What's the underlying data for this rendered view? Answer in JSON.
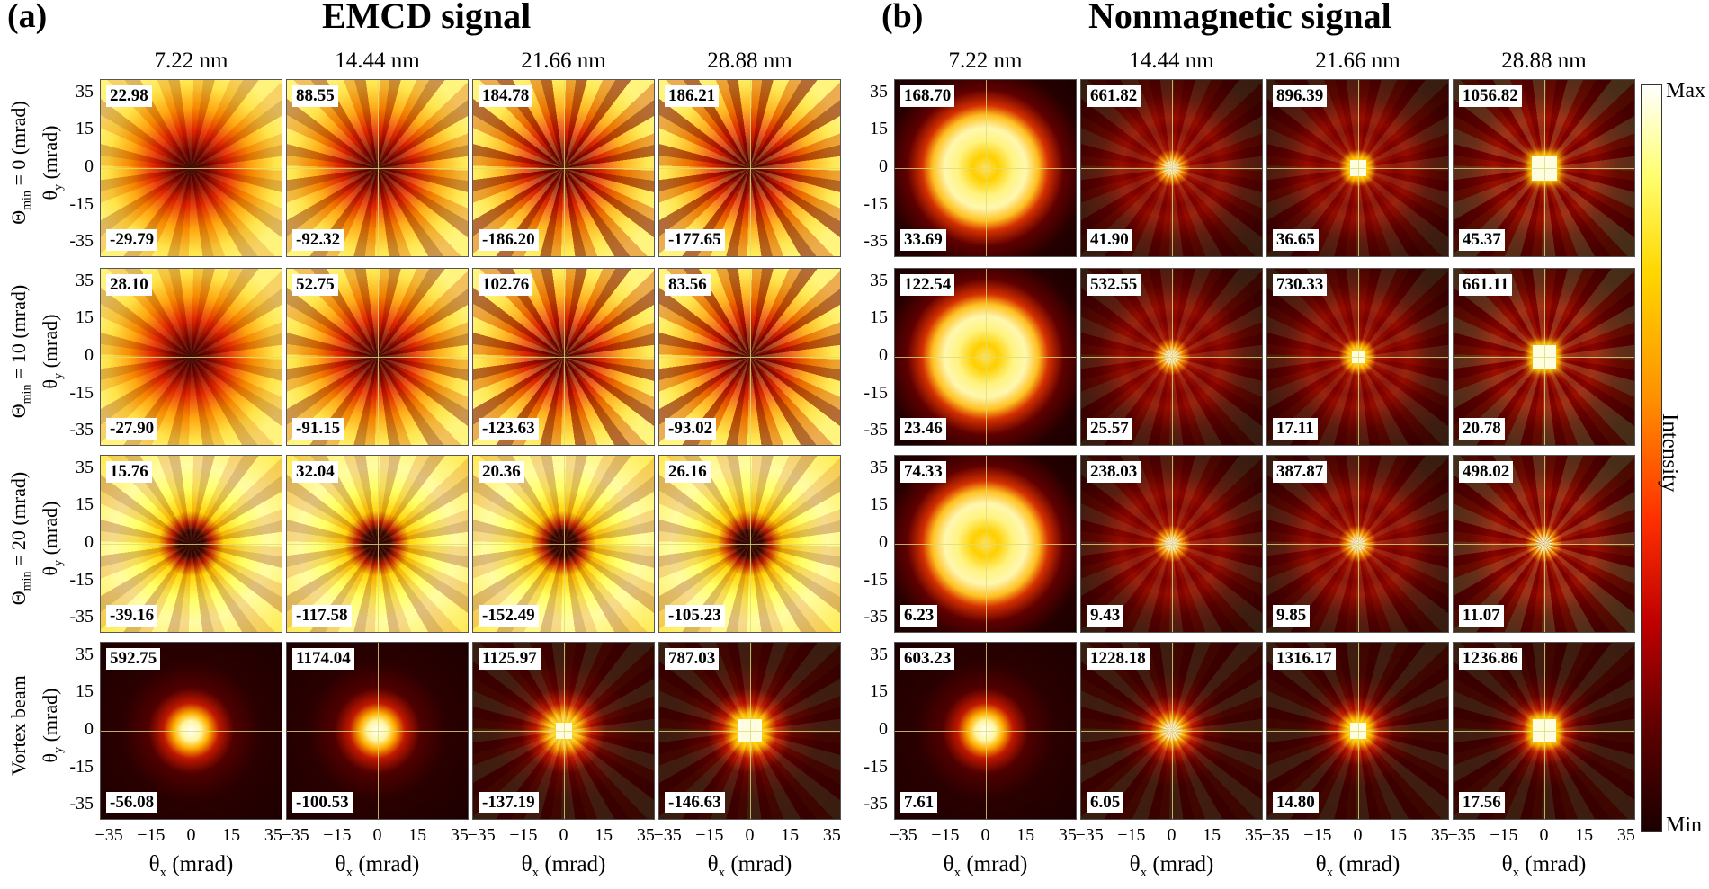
{
  "panel_a": {
    "label": "(a)",
    "title": "EMCD signal"
  },
  "panel_b": {
    "label": "(b)",
    "title": "Nonmagnetic signal"
  },
  "thicknesses": [
    "7.22 nm",
    "14.44 nm",
    "21.66 nm",
    "28.88 nm"
  ],
  "row_labels": [
    {
      "line1": "Θ",
      "sub1": "min",
      "rest1": " = 0 (mrad)",
      "line2": "θ",
      "sub2": "y",
      "rest2": " (mrad)"
    },
    {
      "line1": "Θ",
      "sub1": "min",
      "rest1": " = 10 (mrad)",
      "line2": "θ",
      "sub2": "y",
      "rest2": " (mrad)"
    },
    {
      "line1": "Θ",
      "sub1": "min",
      "rest1": " = 20 (mrad)",
      "line2": "θ",
      "sub2": "y",
      "rest2": " (mrad)"
    },
    {
      "line1": "Vortex beam",
      "sub1": "",
      "rest1": "",
      "line2": "θ",
      "sub2": "y",
      "rest2": " (mrad)"
    }
  ],
  "yticks": [
    "35",
    "15",
    "0",
    "-15",
    "-35"
  ],
  "xticks": [
    "−35",
    "−15",
    "0",
    "15",
    "35"
  ],
  "xlabel": {
    "theta": "θ",
    "sub": "x",
    "unit": " (mrad)"
  },
  "emcd_values": [
    [
      [
        "22.98",
        "-29.79"
      ],
      [
        "88.55",
        "-92.32"
      ],
      [
        "184.78",
        "-186.20"
      ],
      [
        "186.21",
        "-177.65"
      ]
    ],
    [
      [
        "28.10",
        "-27.90"
      ],
      [
        "52.75",
        "-91.15"
      ],
      [
        "102.76",
        "-123.63"
      ],
      [
        "83.56",
        "-93.02"
      ]
    ],
    [
      [
        "15.76",
        "-39.16"
      ],
      [
        "32.04",
        "-117.58"
      ],
      [
        "20.36",
        "-152.49"
      ],
      [
        "26.16",
        "-105.23"
      ]
    ],
    [
      [
        "592.75",
        "-56.08"
      ],
      [
        "1174.04",
        "-100.53"
      ],
      [
        "1125.97",
        "-137.19"
      ],
      [
        "787.03",
        "-146.63"
      ]
    ]
  ],
  "nonmag_values": [
    [
      [
        "168.70",
        "33.69"
      ],
      [
        "661.82",
        "41.90"
      ],
      [
        "896.39",
        "36.65"
      ],
      [
        "1056.82",
        "45.37"
      ]
    ],
    [
      [
        "122.54",
        "23.46"
      ],
      [
        "532.55",
        "25.57"
      ],
      [
        "730.33",
        "17.11"
      ],
      [
        "661.11",
        "20.78"
      ]
    ],
    [
      [
        "74.33",
        "6.23"
      ],
      [
        "238.03",
        "9.43"
      ],
      [
        "387.87",
        "9.85"
      ],
      [
        "498.02",
        "11.07"
      ]
    ],
    [
      [
        "603.23",
        "7.61"
      ],
      [
        "1228.18",
        "6.05"
      ],
      [
        "1316.17",
        "14.80"
      ],
      [
        "1236.86",
        "17.56"
      ]
    ]
  ],
  "colorbar": {
    "max": "Max",
    "min": "Min",
    "label": "Intensity"
  }
}
